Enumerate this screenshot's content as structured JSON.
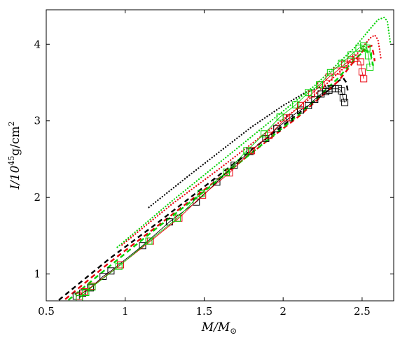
{
  "chart_data": {
    "type": "line",
    "title": "",
    "xlabel": "M/M_⊙",
    "ylabel": "I/10^45 g/cm^2",
    "xlabel_parts": {
      "main": "M/M",
      "sub": "⊙"
    },
    "ylabel_parts": {
      "main": "I/10",
      "sup": "45",
      "unit": "g/cm",
      "unit_sup": "2"
    },
    "xlim": [
      0.5,
      2.7
    ],
    "ylim": [
      0.65,
      4.45
    ],
    "xticks": [
      0.5,
      1,
      1.5,
      2,
      2.5
    ],
    "xtick_labels": [
      "0.5",
      "1",
      "1.5",
      "2",
      "2.5"
    ],
    "yticks": [
      1,
      2,
      3,
      4
    ],
    "ytick_labels": [
      "1",
      "2",
      "3",
      "4"
    ],
    "grid": false,
    "legend": "none",
    "colors": {
      "black": "#000000",
      "red": "#e8000b",
      "green": "#00d200"
    },
    "series": [
      {
        "color": "#000000",
        "style": "dotted",
        "x": [
          1.15,
          1.4,
          1.6,
          1.8,
          2.0,
          2.15,
          2.25,
          2.32
        ],
        "y": [
          1.87,
          2.28,
          2.6,
          2.92,
          3.2,
          3.38,
          3.45,
          3.47
        ]
      },
      {
        "color": "#e8000b",
        "style": "dotted",
        "x": [
          0.98,
          1.3,
          1.6,
          1.9,
          2.2,
          2.4,
          2.5,
          2.55,
          2.58,
          2.6,
          2.61,
          2.62
        ],
        "y": [
          1.38,
          1.92,
          2.38,
          2.86,
          3.34,
          3.72,
          3.95,
          4.08,
          4.12,
          4.06,
          3.94,
          3.8
        ]
      },
      {
        "color": "#00d200",
        "style": "dotted",
        "x": [
          0.95,
          1.3,
          1.6,
          1.9,
          2.2,
          2.45,
          2.55,
          2.6,
          2.64,
          2.66,
          2.67,
          2.68
        ],
        "y": [
          1.35,
          1.96,
          2.46,
          2.96,
          3.46,
          3.95,
          4.2,
          4.32,
          4.35,
          4.3,
          4.15,
          4.0
        ]
      },
      {
        "color": "#000000",
        "style": "dashed",
        "x": [
          0.58,
          0.9,
          1.2,
          1.5,
          1.8,
          2.1,
          2.3,
          2.35,
          2.38,
          2.4,
          2.41
        ],
        "y": [
          0.66,
          1.2,
          1.66,
          2.14,
          2.62,
          3.1,
          3.42,
          3.52,
          3.56,
          3.5,
          3.38
        ]
      },
      {
        "color": "#e8000b",
        "style": "dashed",
        "x": [
          0.62,
          0.9,
          1.2,
          1.5,
          1.8,
          2.1,
          2.35,
          2.45,
          2.52,
          2.56,
          2.57,
          2.58
        ],
        "y": [
          0.67,
          1.15,
          1.62,
          2.1,
          2.58,
          3.06,
          3.52,
          3.78,
          3.95,
          3.98,
          3.9,
          3.78
        ]
      },
      {
        "color": "#00d200",
        "style": "dashed",
        "x": [
          0.64,
          0.9,
          1.2,
          1.5,
          1.8,
          2.1,
          2.35,
          2.45,
          2.52,
          2.55,
          2.56,
          2.57
        ],
        "y": [
          0.66,
          1.1,
          1.6,
          2.08,
          2.58,
          3.08,
          3.56,
          3.8,
          3.92,
          3.9,
          3.82,
          3.72
        ]
      },
      {
        "color": "#000000",
        "style": "solid-square",
        "x": [
          0.69,
          0.73,
          0.78,
          0.86,
          0.91,
          1.11,
          1.28,
          1.45,
          1.58,
          1.69,
          1.79,
          1.89,
          1.96,
          2.04,
          2.11,
          2.16,
          2.2,
          2.24,
          2.27,
          2.29,
          2.31,
          2.33,
          2.35,
          2.37,
          2.38,
          2.39
        ],
        "y": [
          0.71,
          0.75,
          0.82,
          0.97,
          1.04,
          1.37,
          1.68,
          1.94,
          2.2,
          2.42,
          2.6,
          2.77,
          2.9,
          3.04,
          3.14,
          3.2,
          3.28,
          3.35,
          3.38,
          3.4,
          3.42,
          3.42,
          3.42,
          3.39,
          3.3,
          3.24
        ]
      },
      {
        "color": "#e8000b",
        "style": "solid-square",
        "x": [
          0.71,
          0.74,
          0.79,
          0.97,
          1.16,
          1.34,
          1.49,
          1.66,
          1.8,
          1.91,
          2.02,
          2.11,
          2.18,
          2.24,
          2.29,
          2.34,
          2.39,
          2.43,
          2.46,
          2.49,
          2.5,
          2.51
        ],
        "y": [
          0.71,
          0.77,
          0.84,
          1.12,
          1.43,
          1.73,
          2.03,
          2.32,
          2.61,
          2.81,
          3.04,
          3.2,
          3.35,
          3.47,
          3.57,
          3.65,
          3.74,
          3.8,
          3.82,
          3.77,
          3.64,
          3.55
        ]
      },
      {
        "color": "#00d200",
        "style": "solid-square",
        "x": [
          0.71,
          0.75,
          0.79,
          0.96,
          1.15,
          1.33,
          1.48,
          1.64,
          1.77,
          1.88,
          1.98,
          2.08,
          2.16,
          2.23,
          2.3,
          2.37,
          2.43,
          2.48,
          2.51,
          2.53,
          2.54,
          2.55
        ],
        "y": [
          0.68,
          0.76,
          0.83,
          1.1,
          1.43,
          1.73,
          2.05,
          2.33,
          2.61,
          2.83,
          3.05,
          3.21,
          3.37,
          3.47,
          3.63,
          3.75,
          3.86,
          3.95,
          3.98,
          3.95,
          3.85,
          3.7
        ]
      }
    ]
  }
}
